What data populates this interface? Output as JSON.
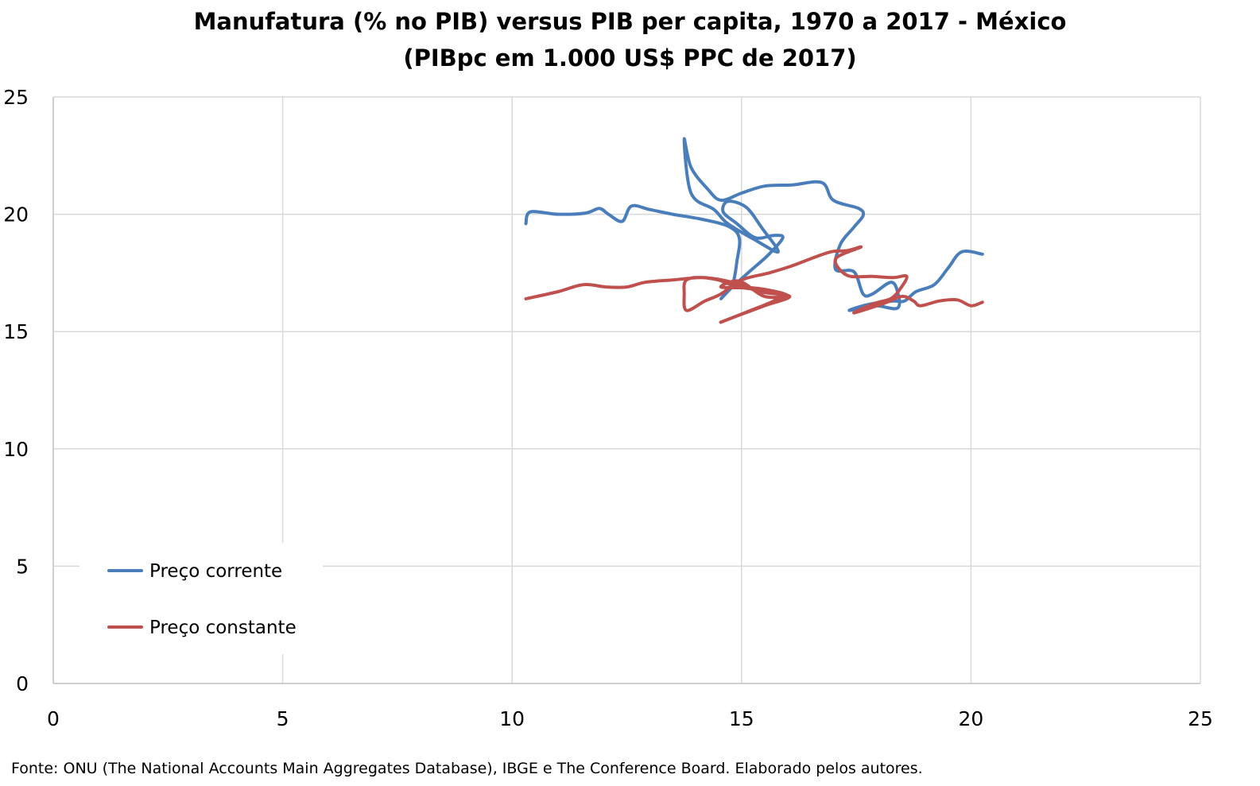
{
  "chart_data": {
    "type": "line",
    "title": "Manufatura (% no PIB) versus PIB per capita, 1970 a 2017 - México",
    "subtitle": "(PIBpc em 1.000 US$ PPC de 2017)",
    "xlabel": "",
    "ylabel": "",
    "xlim": [
      0,
      25
    ],
    "ylim": [
      0,
      25
    ],
    "xticks": [
      "0",
      "5",
      "10",
      "15",
      "20",
      "25"
    ],
    "yticks": [
      "0",
      "5",
      "10",
      "15",
      "20",
      "25"
    ],
    "grid": true,
    "legend": "bottom-left",
    "series": [
      {
        "name": "Preço corrente",
        "color": "#4a7ebb",
        "points": [
          [
            10.3,
            19.6
          ],
          [
            10.4,
            20.1
          ],
          [
            11.0,
            20.0
          ],
          [
            11.6,
            20.05
          ],
          [
            11.9,
            20.25
          ],
          [
            12.1,
            20.0
          ],
          [
            12.4,
            19.7
          ],
          [
            12.6,
            20.35
          ],
          [
            13.0,
            20.2
          ],
          [
            13.5,
            20.0
          ],
          [
            14.1,
            19.8
          ],
          [
            14.7,
            19.5
          ],
          [
            14.95,
            19.0
          ],
          [
            14.9,
            18.0
          ],
          [
            14.8,
            17.0
          ],
          [
            14.55,
            16.4
          ],
          [
            14.8,
            16.9
          ],
          [
            15.2,
            17.6
          ],
          [
            15.6,
            18.3
          ],
          [
            15.9,
            19.0
          ],
          [
            15.7,
            19.1
          ],
          [
            15.3,
            19.0
          ],
          [
            14.9,
            19.6
          ],
          [
            14.6,
            20.1
          ],
          [
            14.7,
            20.55
          ],
          [
            15.1,
            20.3
          ],
          [
            15.45,
            19.4
          ],
          [
            15.8,
            18.4
          ],
          [
            15.3,
            18.9
          ],
          [
            14.7,
            19.6
          ],
          [
            14.4,
            20.2
          ],
          [
            13.9,
            20.9
          ],
          [
            13.75,
            23.2
          ],
          [
            13.9,
            22.0
          ],
          [
            14.25,
            21.1
          ],
          [
            14.55,
            20.6
          ],
          [
            15.0,
            20.9
          ],
          [
            15.5,
            21.2
          ],
          [
            16.1,
            21.25
          ],
          [
            16.75,
            21.35
          ],
          [
            17.0,
            20.6
          ],
          [
            17.55,
            20.25
          ],
          [
            17.65,
            19.95
          ],
          [
            17.45,
            19.45
          ],
          [
            17.15,
            18.7
          ],
          [
            17.05,
            17.65
          ],
          [
            17.45,
            17.55
          ],
          [
            17.65,
            16.6
          ],
          [
            17.85,
            16.6
          ],
          [
            18.25,
            17.1
          ],
          [
            18.4,
            16.7
          ],
          [
            18.4,
            16.0
          ],
          [
            17.9,
            16.1
          ],
          [
            17.35,
            15.9
          ],
          [
            17.75,
            16.15
          ],
          [
            18.3,
            16.3
          ],
          [
            18.55,
            16.3
          ],
          [
            18.8,
            16.7
          ],
          [
            19.2,
            17.0
          ],
          [
            19.5,
            17.7
          ],
          [
            19.8,
            18.4
          ],
          [
            20.25,
            18.3
          ]
        ]
      },
      {
        "name": "Preço constante",
        "color": "#c0504d",
        "points": [
          [
            10.3,
            16.4
          ],
          [
            11.0,
            16.7
          ],
          [
            11.55,
            17.0
          ],
          [
            12.05,
            16.9
          ],
          [
            12.5,
            16.9
          ],
          [
            12.9,
            17.1
          ],
          [
            13.5,
            17.2
          ],
          [
            14.1,
            17.3
          ],
          [
            14.5,
            17.2
          ],
          [
            14.85,
            16.95
          ],
          [
            15.5,
            16.8
          ],
          [
            16.0,
            16.55
          ],
          [
            15.5,
            16.5
          ],
          [
            14.95,
            17.15
          ],
          [
            14.55,
            16.9
          ],
          [
            15.1,
            16.85
          ],
          [
            15.9,
            16.6
          ],
          [
            15.7,
            16.3
          ],
          [
            15.2,
            15.9
          ],
          [
            14.55,
            15.4
          ],
          [
            14.95,
            15.7
          ],
          [
            15.5,
            16.1
          ],
          [
            16.05,
            16.5
          ],
          [
            15.4,
            16.7
          ],
          [
            14.8,
            17.1
          ],
          [
            14.2,
            17.3
          ],
          [
            13.8,
            17.2
          ],
          [
            13.75,
            16.6
          ],
          [
            13.8,
            15.9
          ],
          [
            14.2,
            16.3
          ],
          [
            14.55,
            16.6
          ],
          [
            15.0,
            17.2
          ],
          [
            15.6,
            17.5
          ],
          [
            16.1,
            17.8
          ],
          [
            16.5,
            18.1
          ],
          [
            16.95,
            18.4
          ],
          [
            17.3,
            18.45
          ],
          [
            17.6,
            18.6
          ],
          [
            17.05,
            18.1
          ],
          [
            17.3,
            17.4
          ],
          [
            17.85,
            17.35
          ],
          [
            18.3,
            17.3
          ],
          [
            18.6,
            17.35
          ],
          [
            18.45,
            16.8
          ],
          [
            18.25,
            16.4
          ],
          [
            17.9,
            16.2
          ],
          [
            17.45,
            15.8
          ],
          [
            18.1,
            16.2
          ],
          [
            18.5,
            16.5
          ],
          [
            18.75,
            16.3
          ],
          [
            18.9,
            16.1
          ],
          [
            19.3,
            16.3
          ],
          [
            19.7,
            16.35
          ],
          [
            20.0,
            16.1
          ],
          [
            20.25,
            16.25
          ]
        ]
      }
    ]
  },
  "source": "Fonte: ONU (The National Accounts Main Aggregates Database), IBGE e The Conference Board. Elaborado pelos autores."
}
